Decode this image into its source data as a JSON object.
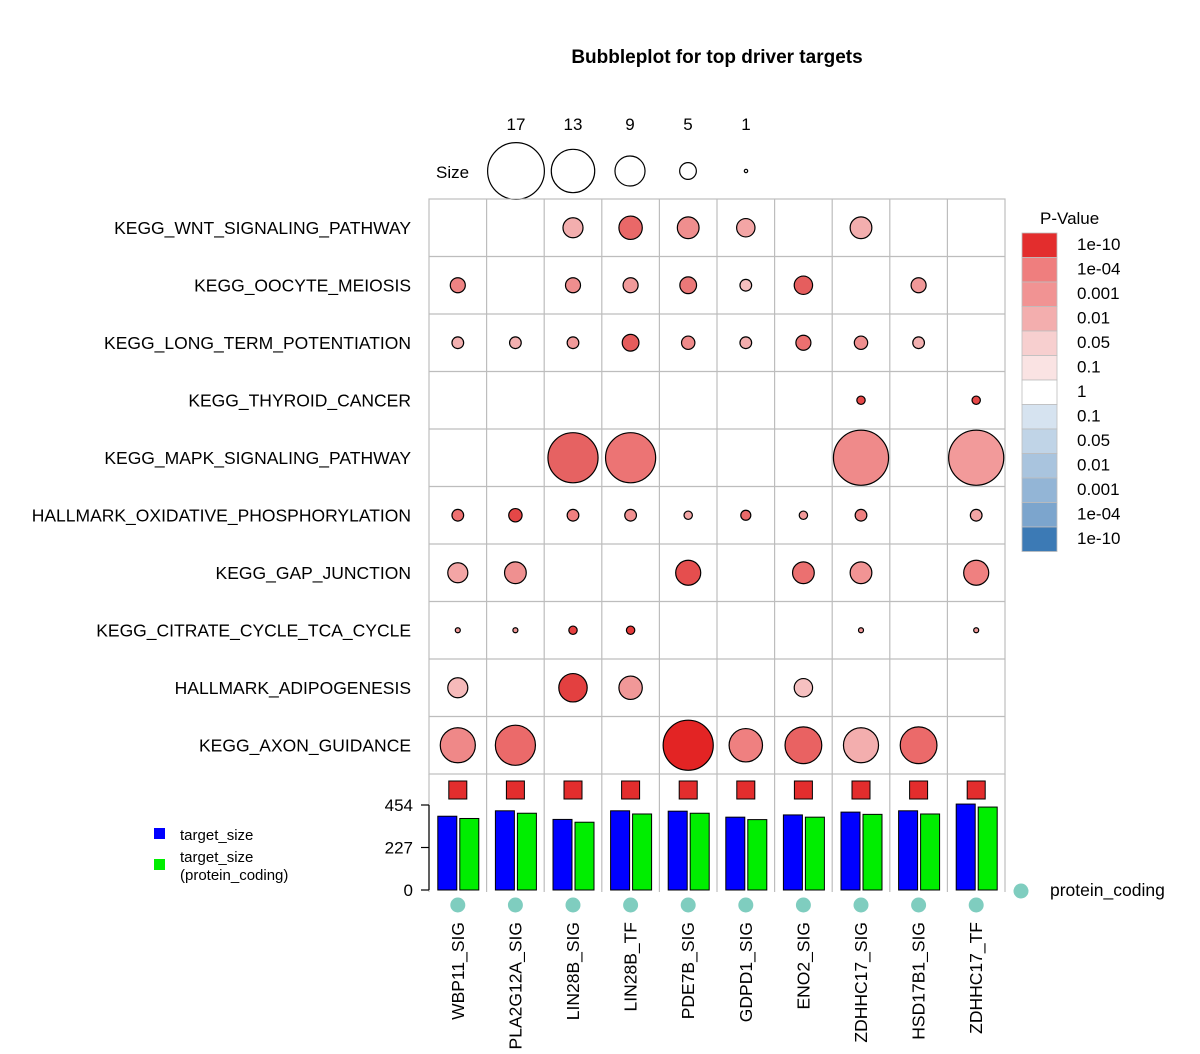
{
  "chart_data": {
    "type": "bubble",
    "title": "Bubbleplot for top driver targets",
    "size_legend": {
      "label": "Size",
      "values": [
        17,
        13,
        9,
        5,
        1
      ]
    },
    "pvalue_legend": {
      "title": "P-Value",
      "labels": [
        "1e-10",
        "1e-04",
        "0.001",
        "0.01",
        "0.05",
        "0.1",
        "1",
        "0.1",
        "0.05",
        "0.01",
        "0.001",
        "1e-04",
        "1e-10"
      ],
      "colors": [
        "#e32d2d",
        "#ef7e7e",
        "#f19393",
        "#f3aeae",
        "#f7cfcf",
        "#fae3e3",
        "#ffffff",
        "#d6e3f0",
        "#c0d4e7",
        "#a9c4de",
        "#93b5d6",
        "#7ca5cd",
        "#3c7ab5"
      ]
    },
    "drivers": [
      "WBP11_SIG",
      "PLA2G12A_SIG",
      "LIN28B_SIG",
      "LIN28B_TF",
      "PDE7B_SIG",
      "GDPD1_SIG",
      "ENO2_SIG",
      "ZDHHC17_SIG",
      "HSD17B1_SIG",
      "ZDHHC17_TF"
    ],
    "pathways": [
      "KEGG_WNT_SIGNALING_PATHWAY",
      "KEGG_OOCYTE_MEIOSIS",
      "KEGG_LONG_TERM_POTENTIATION",
      "KEGG_THYROID_CANCER",
      "KEGG_MAPK_SIGNALING_PATHWAY",
      "HALLMARK_OXIDATIVE_PHOSPHORYLATION",
      "KEGG_GAP_JUNCTION",
      "KEGG_CITRATE_CYCLE_TCA_CYCLE",
      "HALLMARK_ADIPOGENESIS",
      "KEGG_AXON_GUIDANCE"
    ],
    "bubbles": [
      {
        "pathway": 0,
        "driver": 2,
        "size": 6,
        "color": "#f3aeae"
      },
      {
        "pathway": 0,
        "driver": 3,
        "size": 7,
        "color": "#e96868"
      },
      {
        "pathway": 0,
        "driver": 4,
        "size": 6.5,
        "color": "#ef8e8e"
      },
      {
        "pathway": 0,
        "driver": 5,
        "size": 5.5,
        "color": "#f3a5a5"
      },
      {
        "pathway": 0,
        "driver": 7,
        "size": 6.5,
        "color": "#f3aeae"
      },
      {
        "pathway": 1,
        "driver": 0,
        "size": 4.5,
        "color": "#ef8383"
      },
      {
        "pathway": 1,
        "driver": 2,
        "size": 4.5,
        "color": "#ef8e8e"
      },
      {
        "pathway": 1,
        "driver": 3,
        "size": 4.5,
        "color": "#f19a9a"
      },
      {
        "pathway": 1,
        "driver": 4,
        "size": 5,
        "color": "#eb7878"
      },
      {
        "pathway": 1,
        "driver": 5,
        "size": 3.5,
        "color": "#f6c0c0"
      },
      {
        "pathway": 1,
        "driver": 6,
        "size": 5.5,
        "color": "#e55e5e"
      },
      {
        "pathway": 1,
        "driver": 8,
        "size": 4.5,
        "color": "#f19898"
      },
      {
        "pathway": 2,
        "driver": 0,
        "size": 3.5,
        "color": "#f3b0b0"
      },
      {
        "pathway": 2,
        "driver": 1,
        "size": 3.5,
        "color": "#f3b0b0"
      },
      {
        "pathway": 2,
        "driver": 2,
        "size": 3.5,
        "color": "#f19a9a"
      },
      {
        "pathway": 2,
        "driver": 3,
        "size": 5,
        "color": "#e55c5c"
      },
      {
        "pathway": 2,
        "driver": 4,
        "size": 4,
        "color": "#ef8a8a"
      },
      {
        "pathway": 2,
        "driver": 5,
        "size": 3.5,
        "color": "#f3aeae"
      },
      {
        "pathway": 2,
        "driver": 6,
        "size": 4.5,
        "color": "#eb7070"
      },
      {
        "pathway": 2,
        "driver": 7,
        "size": 4,
        "color": "#ef8e8e"
      },
      {
        "pathway": 2,
        "driver": 8,
        "size": 3.5,
        "color": "#f3b0b0"
      },
      {
        "pathway": 3,
        "driver": 7,
        "size": 2.5,
        "color": "#e64848"
      },
      {
        "pathway": 3,
        "driver": 9,
        "size": 2.5,
        "color": "#e64848"
      },
      {
        "pathway": 4,
        "driver": 2,
        "size": 15,
        "color": "#e66262"
      },
      {
        "pathway": 4,
        "driver": 3,
        "size": 15,
        "color": "#ec7474"
      },
      {
        "pathway": 4,
        "driver": 7,
        "size": 16.5,
        "color": "#ef8a8a"
      },
      {
        "pathway": 4,
        "driver": 9,
        "size": 16.5,
        "color": "#f29a9a"
      },
      {
        "pathway": 5,
        "driver": 0,
        "size": 3.5,
        "color": "#ed7070"
      },
      {
        "pathway": 5,
        "driver": 1,
        "size": 4,
        "color": "#e54747"
      },
      {
        "pathway": 5,
        "driver": 2,
        "size": 3.5,
        "color": "#ef8080"
      },
      {
        "pathway": 5,
        "driver": 3,
        "size": 3.5,
        "color": "#f19090"
      },
      {
        "pathway": 5,
        "driver": 4,
        "size": 2.5,
        "color": "#f3a5a5"
      },
      {
        "pathway": 5,
        "driver": 5,
        "size": 3,
        "color": "#eb6a6a"
      },
      {
        "pathway": 5,
        "driver": 6,
        "size": 2.5,
        "color": "#f19898"
      },
      {
        "pathway": 5,
        "driver": 7,
        "size": 3.5,
        "color": "#ef8080"
      },
      {
        "pathway": 5,
        "driver": 9,
        "size": 3.5,
        "color": "#f3a5a5"
      },
      {
        "pathway": 6,
        "driver": 0,
        "size": 6,
        "color": "#f3a5a5"
      },
      {
        "pathway": 6,
        "driver": 1,
        "size": 6.5,
        "color": "#ef9090"
      },
      {
        "pathway": 6,
        "driver": 4,
        "size": 7.5,
        "color": "#e54e4e"
      },
      {
        "pathway": 6,
        "driver": 6,
        "size": 6.5,
        "color": "#eb7070"
      },
      {
        "pathway": 6,
        "driver": 7,
        "size": 6.5,
        "color": "#f19494"
      },
      {
        "pathway": 6,
        "driver": 9,
        "size": 7.5,
        "color": "#ef8080"
      },
      {
        "pathway": 7,
        "driver": 0,
        "size": 1.5,
        "color": "#f19898"
      },
      {
        "pathway": 7,
        "driver": 1,
        "size": 1.5,
        "color": "#f19898"
      },
      {
        "pathway": 7,
        "driver": 2,
        "size": 2.5,
        "color": "#e64040"
      },
      {
        "pathway": 7,
        "driver": 3,
        "size": 2.5,
        "color": "#e43a3a"
      },
      {
        "pathway": 7,
        "driver": 7,
        "size": 1.5,
        "color": "#f19898"
      },
      {
        "pathway": 7,
        "driver": 9,
        "size": 1.5,
        "color": "#f19898"
      },
      {
        "pathway": 8,
        "driver": 0,
        "size": 6,
        "color": "#f6baba"
      },
      {
        "pathway": 8,
        "driver": 2,
        "size": 8.5,
        "color": "#e34040"
      },
      {
        "pathway": 8,
        "driver": 3,
        "size": 7,
        "color": "#f19898"
      },
      {
        "pathway": 8,
        "driver": 6,
        "size": 5.5,
        "color": "#f6c0c0"
      },
      {
        "pathway": 9,
        "driver": 0,
        "size": 10.5,
        "color": "#ef8888"
      },
      {
        "pathway": 9,
        "driver": 1,
        "size": 12,
        "color": "#eb6a6a"
      },
      {
        "pathway": 9,
        "driver": 4,
        "size": 15,
        "color": "#e32424"
      },
      {
        "pathway": 9,
        "driver": 5,
        "size": 10,
        "color": "#ef8080"
      },
      {
        "pathway": 9,
        "driver": 6,
        "size": 11,
        "color": "#e96262"
      },
      {
        "pathway": 9,
        "driver": 7,
        "size": 10.5,
        "color": "#f3aeae"
      },
      {
        "pathway": 9,
        "driver": 8,
        "size": 11,
        "color": "#eb6a6a"
      }
    ],
    "bar_panel": {
      "ylim": [
        0,
        454
      ],
      "yticks": [
        0,
        227,
        454
      ],
      "series": [
        {
          "name": "target_size",
          "color": "#0000ff",
          "values": [
            394,
            423,
            377,
            423,
            421,
            389,
            401,
            416,
            423,
            459
          ]
        },
        {
          "name": "target_size\n(protein_coding)",
          "color": "#00ee00",
          "values": [
            382,
            410,
            362,
            406,
            410,
            376,
            389,
            404,
            406,
            443
          ]
        }
      ],
      "legend": [
        {
          "label": "target_size",
          "color": "#0000ff"
        },
        {
          "label_lines": [
            "target_size",
            "(protein_coding)"
          ],
          "color": "#00ee00"
        }
      ]
    },
    "marker_row": {
      "color": "#e32d2d",
      "shape": "square"
    },
    "driver_type": {
      "label": "protein_coding",
      "color": "#7fcdbf"
    }
  }
}
